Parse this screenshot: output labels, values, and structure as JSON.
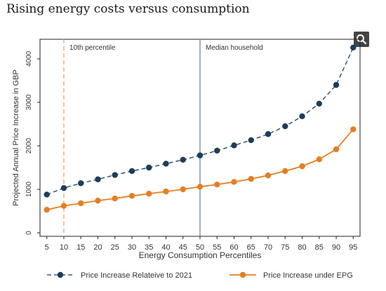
{
  "page": {
    "title": "Rising energy costs versus consumption"
  },
  "toolbar": {
    "zoom_icon": "search-icon"
  },
  "chart_data": {
    "type": "line",
    "xlabel": "Energy Consumption Percentiles",
    "ylabel": "Projected Annual Price Increase in GBP",
    "x": [
      5,
      10,
      15,
      20,
      25,
      30,
      35,
      40,
      45,
      50,
      55,
      60,
      65,
      70,
      75,
      80,
      85,
      90,
      95
    ],
    "xticks": [
      5,
      10,
      15,
      20,
      25,
      30,
      35,
      40,
      45,
      50,
      55,
      60,
      65,
      70,
      75,
      80,
      85,
      90,
      95
    ],
    "yticks": [
      0,
      1000,
      2000,
      3000,
      4000
    ],
    "xlim": [
      3,
      97
    ],
    "ylim": [
      -80,
      4450
    ],
    "grid": false,
    "legend_position": "bottom",
    "series": [
      {
        "name": "Price Increase Relateive to 2021",
        "color": "#1c3d5a",
        "dash": true,
        "values": [
          880,
          1030,
          1140,
          1230,
          1330,
          1420,
          1500,
          1590,
          1680,
          1780,
          1890,
          2010,
          2130,
          2270,
          2450,
          2680,
          2970,
          3400,
          4260
        ]
      },
      {
        "name": "Price Increase under EPG",
        "color": "#e67e22",
        "dash": false,
        "values": [
          530,
          620,
          680,
          740,
          790,
          850,
          900,
          950,
          1000,
          1060,
          1110,
          1170,
          1240,
          1320,
          1420,
          1530,
          1690,
          1920,
          2380
        ]
      }
    ],
    "reference_lines": [
      {
        "x": 10,
        "label": "10th percentile",
        "color": "#f4b183",
        "dash": true
      },
      {
        "x": 50,
        "label": "Median household",
        "color": "#6a7b8c",
        "dash": false
      }
    ]
  }
}
